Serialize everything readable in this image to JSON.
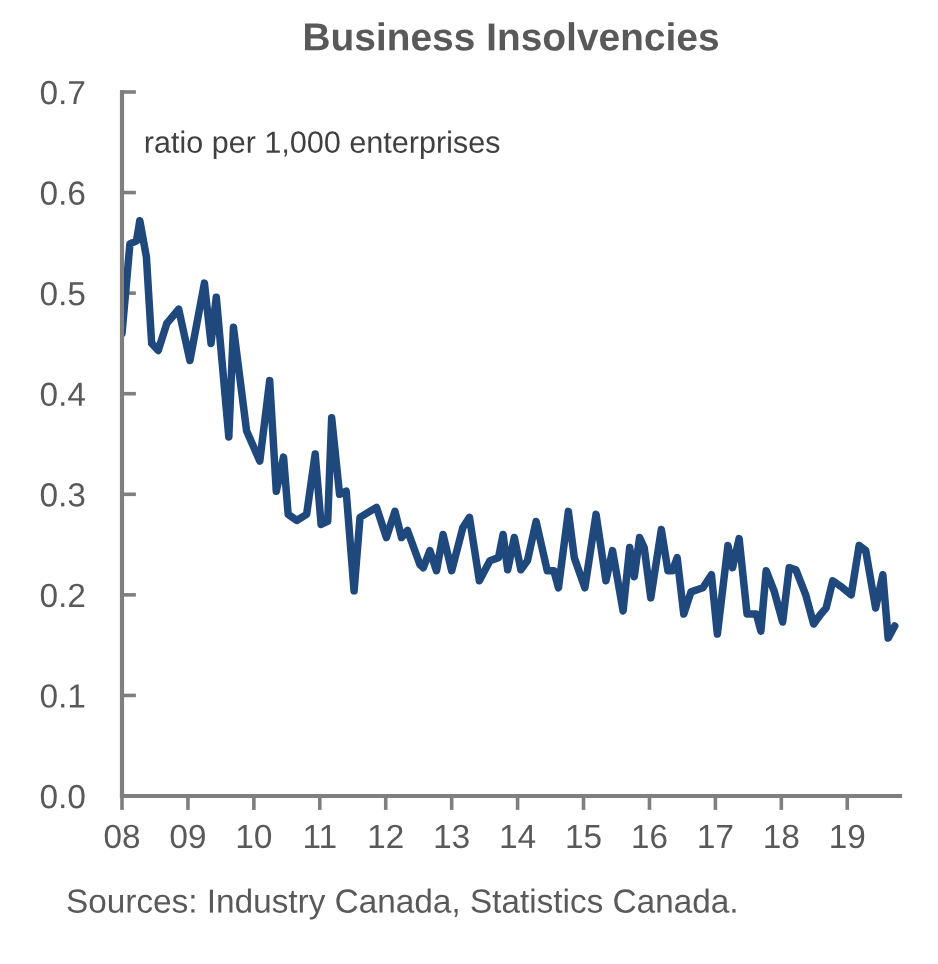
{
  "chart_data": {
    "type": "line",
    "title": "Business Insolvencies",
    "ylabel": "ratio per 1,000 enterprises",
    "annotations": [
      "Sources: Industry Canada, Statistics Canada."
    ],
    "x": [
      2008.0,
      2008.12,
      2008.22,
      2008.27,
      2008.37,
      2008.45,
      2008.55,
      2008.68,
      2008.86,
      2009.03,
      2009.25,
      2009.35,
      2009.43,
      2009.62,
      2009.69,
      2009.89,
      2010.09,
      2010.24,
      2010.34,
      2010.45,
      2010.52,
      2010.65,
      2010.8,
      2010.93,
      2011.02,
      2011.12,
      2011.18,
      2011.3,
      2011.4,
      2011.52,
      2011.61,
      2011.86,
      2012.01,
      2012.14,
      2012.24,
      2012.33,
      2012.52,
      2012.57,
      2012.67,
      2012.77,
      2012.87,
      2013.0,
      2013.17,
      2013.27,
      2013.42,
      2013.58,
      2013.71,
      2013.78,
      2013.85,
      2013.95,
      2014.05,
      2014.15,
      2014.28,
      2014.45,
      2014.55,
      2014.62,
      2014.77,
      2014.86,
      2015.02,
      2015.19,
      2015.34,
      2015.44,
      2015.6,
      2015.7,
      2015.77,
      2015.85,
      2015.92,
      2016.02,
      2016.18,
      2016.28,
      2016.35,
      2016.42,
      2016.52,
      2016.63,
      2016.81,
      2016.94,
      2017.03,
      2017.19,
      2017.26,
      2017.36,
      2017.48,
      2017.62,
      2017.69,
      2017.77,
      2017.89,
      2018.02,
      2018.12,
      2018.22,
      2018.37,
      2018.49,
      2018.6,
      2018.68,
      2018.78,
      2018.93,
      2019.06,
      2019.18,
      2019.28,
      2019.43,
      2019.54,
      2019.62,
      2019.72
    ],
    "series": [
      {
        "color": "#1f497d",
        "values": [
          0.46,
          0.549,
          0.552,
          0.572,
          0.536,
          0.45,
          0.443,
          0.47,
          0.484,
          0.433,
          0.51,
          0.45,
          0.496,
          0.357,
          0.466,
          0.363,
          0.333,
          0.413,
          0.303,
          0.337,
          0.28,
          0.274,
          0.28,
          0.34,
          0.27,
          0.273,
          0.376,
          0.3,
          0.303,
          0.204,
          0.277,
          0.287,
          0.257,
          0.283,
          0.257,
          0.264,
          0.23,
          0.227,
          0.244,
          0.224,
          0.26,
          0.224,
          0.267,
          0.277,
          0.214,
          0.234,
          0.237,
          0.26,
          0.225,
          0.257,
          0.225,
          0.234,
          0.273,
          0.224,
          0.224,
          0.207,
          0.283,
          0.237,
          0.207,
          0.28,
          0.214,
          0.244,
          0.184,
          0.247,
          0.218,
          0.257,
          0.247,
          0.197,
          0.265,
          0.224,
          0.224,
          0.237,
          0.181,
          0.203,
          0.207,
          0.22,
          0.161,
          0.249,
          0.227,
          0.256,
          0.181,
          0.181,
          0.164,
          0.224,
          0.204,
          0.173,
          0.227,
          0.225,
          0.2,
          0.171,
          0.181,
          0.187,
          0.214,
          0.207,
          0.2,
          0.249,
          0.244,
          0.187,
          0.22,
          0.157,
          0.169
        ]
      }
    ],
    "xlim": [
      2008,
      2019.8
    ],
    "xticks": [
      {
        "value": 2008,
        "label": "08"
      },
      {
        "value": 2009,
        "label": "09"
      },
      {
        "value": 2010,
        "label": "10"
      },
      {
        "value": 2011,
        "label": "11"
      },
      {
        "value": 2012,
        "label": "12"
      },
      {
        "value": 2013,
        "label": "13"
      },
      {
        "value": 2014,
        "label": "14"
      },
      {
        "value": 2015,
        "label": "15"
      },
      {
        "value": 2016,
        "label": "16"
      },
      {
        "value": 2017,
        "label": "17"
      },
      {
        "value": 2018,
        "label": "18"
      },
      {
        "value": 2019,
        "label": "19"
      }
    ],
    "ylim": [
      0,
      0.7
    ],
    "yticks": [
      {
        "value": 0,
        "label": "0.0"
      },
      0.1,
      0.2,
      0.3,
      0.4,
      0.5,
      0.6,
      0.7
    ],
    "line_style": "solid"
  }
}
